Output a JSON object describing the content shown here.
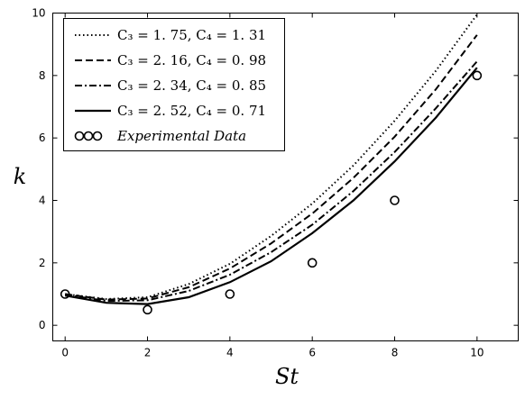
{
  "chart_data": {
    "type": "line",
    "xlabel": "St",
    "ylabel": "k",
    "xlim": [
      -0.3,
      11
    ],
    "ylim": [
      -0.5,
      10
    ],
    "xticks": [
      0,
      2,
      4,
      6,
      8,
      10
    ],
    "yticks": [
      0,
      2,
      4,
      6,
      8,
      10
    ],
    "grid": false,
    "legend_position": "top-left",
    "series": [
      {
        "name": "C3 = 1.75,  C4 = 1.31",
        "legend_label": "C₃ = 1. 75,    C₄ = 1. 31",
        "style": "dotted",
        "x": [
          0,
          1,
          2,
          3,
          4,
          5,
          6,
          7,
          8,
          9,
          10
        ],
        "y": [
          1.0,
          0.84,
          0.9,
          1.32,
          1.97,
          2.86,
          3.9,
          5.12,
          6.55,
          8.15,
          9.95
        ]
      },
      {
        "name": "C3 = 2.16,  C4 = 0.98",
        "legend_label": "C₃ = 2. 16,    C₄ = 0. 98",
        "style": "dashed",
        "x": [
          0,
          1,
          2,
          3,
          4,
          5,
          6,
          7,
          8,
          9,
          10
        ],
        "y": [
          1.0,
          0.82,
          0.86,
          1.22,
          1.82,
          2.62,
          3.58,
          4.72,
          6.04,
          7.56,
          9.3
        ]
      },
      {
        "name": "C3 = 2.34,  C4 = 0.85",
        "legend_label": "C₃ = 2. 34,    C₄ = 0. 85",
        "style": "dashdot",
        "x": [
          0,
          1,
          2,
          3,
          4,
          5,
          6,
          7,
          8,
          9,
          10
        ],
        "y": [
          0.98,
          0.78,
          0.8,
          1.1,
          1.62,
          2.34,
          3.22,
          4.3,
          5.55,
          6.95,
          8.45
        ]
      },
      {
        "name": "C3 = 2.52,  C4 = 0.71",
        "legend_label": "C₃ = 2. 52,    C₄ = 0. 71",
        "style": "solid",
        "x": [
          0,
          1,
          2,
          3,
          4,
          5,
          6,
          7,
          8,
          9,
          10
        ],
        "y": [
          0.95,
          0.72,
          0.68,
          0.9,
          1.38,
          2.05,
          2.95,
          4.0,
          5.25,
          6.65,
          8.25
        ]
      }
    ],
    "points": {
      "name": "Experimental Data",
      "legend_label": "Experimental    Data",
      "x": [
        0,
        2,
        4,
        6,
        8,
        10
      ],
      "y": [
        1.0,
        0.5,
        1.0,
        2.0,
        4.0,
        8.0
      ]
    }
  },
  "colors": {
    "line": "#000000",
    "background": "#ffffff"
  }
}
